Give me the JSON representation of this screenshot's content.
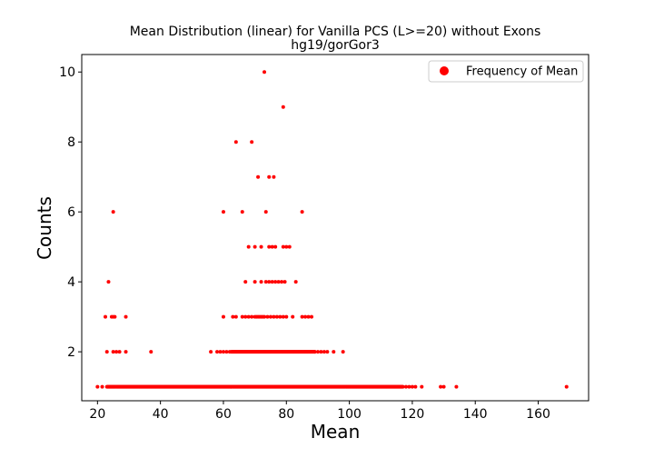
{
  "chart_data": {
    "type": "scatter",
    "title": "Mean Distribution (linear) for Vanilla PCS (L>=20) without Exons",
    "subtitle": "hg19/gorGor3",
    "xlabel": "Mean",
    "ylabel": "Counts",
    "xlim": [
      15,
      176
    ],
    "ylim": [
      0.6,
      10.5
    ],
    "xticks": [
      20,
      40,
      60,
      80,
      100,
      120,
      140,
      160
    ],
    "yticks": [
      2,
      4,
      6,
      8,
      10
    ],
    "xtick_labels": [
      "20",
      "40",
      "60",
      "80",
      "100",
      "120",
      "140",
      "160"
    ],
    "ytick_labels": [
      "2",
      "4",
      "6",
      "8",
      "10"
    ],
    "grid": false,
    "legend": {
      "position": "top-right",
      "entries": [
        "Frequency of Mean"
      ]
    },
    "series": [
      {
        "name": "Frequency of Mean",
        "color": "#ff0000",
        "points": [
          [
            73,
            10
          ],
          [
            79,
            9
          ],
          [
            64,
            8
          ],
          [
            69,
            8
          ],
          [
            71,
            7
          ],
          [
            74.5,
            7
          ],
          [
            76,
            7
          ],
          [
            25,
            6
          ],
          [
            60,
            6
          ],
          [
            66,
            6
          ],
          [
            73.5,
            6
          ],
          [
            85,
            6
          ],
          [
            68,
            5
          ],
          [
            70,
            5
          ],
          [
            72,
            5
          ],
          [
            74.5,
            5
          ],
          [
            75.5,
            5
          ],
          [
            76.5,
            5
          ],
          [
            79,
            5
          ],
          [
            80,
            5
          ],
          [
            81,
            5
          ],
          [
            23.5,
            4
          ],
          [
            67,
            4
          ],
          [
            70,
            4
          ],
          [
            72,
            4
          ],
          [
            73.5,
            4
          ],
          [
            74.5,
            4
          ],
          [
            75.5,
            4
          ],
          [
            76.5,
            4
          ],
          [
            77.5,
            4
          ],
          [
            78.5,
            4
          ],
          [
            79.5,
            4
          ],
          [
            83,
            4
          ],
          [
            22.5,
            3
          ],
          [
            24.5,
            3
          ],
          [
            25,
            3
          ],
          [
            25.5,
            3
          ],
          [
            29,
            3
          ],
          [
            60,
            3
          ],
          [
            63,
            3
          ],
          [
            64,
            3
          ],
          [
            66,
            3
          ],
          [
            67,
            3
          ],
          [
            68,
            3
          ],
          [
            69,
            3
          ],
          [
            70,
            3
          ],
          [
            70.5,
            3
          ],
          [
            71,
            3
          ],
          [
            71.5,
            3
          ],
          [
            72,
            3
          ],
          [
            72.5,
            3
          ],
          [
            73,
            3
          ],
          [
            74,
            3
          ],
          [
            75,
            3
          ],
          [
            76,
            3
          ],
          [
            77,
            3
          ],
          [
            78,
            3
          ],
          [
            79,
            3
          ],
          [
            80,
            3
          ],
          [
            82,
            3
          ],
          [
            85,
            3
          ],
          [
            86,
            3
          ],
          [
            87,
            3
          ],
          [
            88,
            3
          ],
          [
            23,
            2
          ],
          [
            25,
            2
          ],
          [
            26,
            2
          ],
          [
            27,
            2
          ],
          [
            29,
            2
          ],
          [
            37,
            2
          ],
          [
            56,
            2
          ],
          [
            58,
            2
          ],
          [
            59,
            2
          ],
          [
            60,
            2
          ],
          [
            61,
            2
          ],
          [
            62,
            2
          ],
          [
            89,
            2
          ],
          [
            90,
            2
          ],
          [
            91,
            2
          ],
          [
            92,
            2
          ],
          [
            93,
            2
          ],
          [
            95,
            2
          ],
          [
            98,
            2
          ],
          [
            20,
            1
          ],
          [
            21.5,
            1
          ],
          [
            118,
            1
          ],
          [
            119,
            1
          ],
          [
            120,
            1
          ],
          [
            121,
            1
          ],
          [
            123,
            1
          ],
          [
            129,
            1
          ],
          [
            130,
            1
          ],
          [
            134,
            1
          ],
          [
            169,
            1
          ]
        ],
        "ranges": [
          {
            "y": 2,
            "x_from": 62.5,
            "x_to": 89,
            "step": 0.25
          },
          {
            "y": 1,
            "x_from": 23,
            "x_to": 117,
            "step": 0.2
          }
        ]
      }
    ]
  }
}
